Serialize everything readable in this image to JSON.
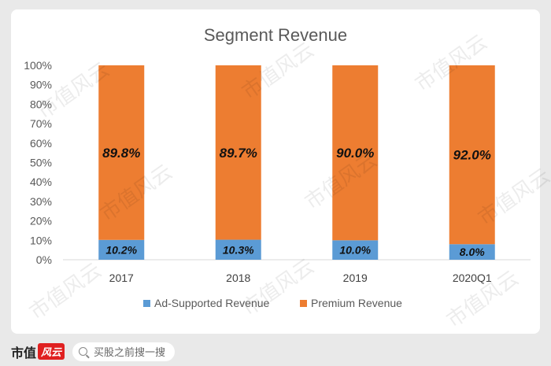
{
  "chart_data": {
    "type": "bar",
    "stacked": true,
    "title": "Segment Revenue",
    "categories": [
      "2017",
      "2018",
      "2019",
      "2020Q1"
    ],
    "series": [
      {
        "name": "Ad-Supported Revenue",
        "color": "#5b9bd5",
        "values": [
          10.2,
          10.3,
          10.0,
          8.0
        ],
        "labels": [
          "10.2%",
          "10.3%",
          "10.0%",
          "8.0%"
        ]
      },
      {
        "name": "Premium Revenue",
        "color": "#ed7d31",
        "values": [
          89.8,
          89.7,
          90.0,
          92.0
        ],
        "labels": [
          "89.8%",
          "89.7%",
          "90.0%",
          "92.0%"
        ]
      }
    ],
    "ylim": [
      0,
      100
    ],
    "yticks": [
      "0%",
      "10%",
      "20%",
      "30%",
      "40%",
      "50%",
      "60%",
      "70%",
      "80%",
      "90%",
      "100%"
    ],
    "legend_position": "bottom"
  },
  "watermark": "市值风云",
  "footer": {
    "brand_main": "市值",
    "brand_badge": "风云",
    "search_placeholder": "买股之前搜一搜"
  }
}
